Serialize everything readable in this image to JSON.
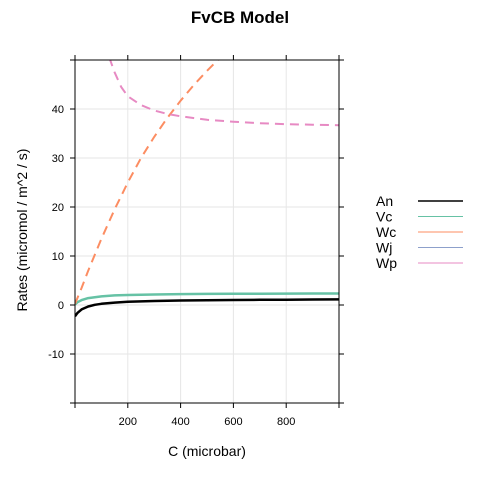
{
  "chart_data": {
    "type": "line",
    "title": "FvCB Model",
    "xlabel": "C (microbar)",
    "ylabel": "Rates (micromol / m^2 / s)",
    "xlim": [
      0,
      1000
    ],
    "ylim": [
      -20,
      50
    ],
    "xticks": [
      200,
      400,
      600,
      800
    ],
    "yticks": [
      -10,
      0,
      10,
      20,
      30,
      40
    ],
    "grid": true,
    "legend_position": "right",
    "series": [
      {
        "name": "An",
        "color": "#000000",
        "dash": "solid",
        "width": 2.5,
        "x": [
          0,
          10,
          25,
          50,
          75,
          100,
          150,
          200,
          300,
          400,
          500,
          600,
          700,
          800,
          900,
          1000
        ],
        "y": [
          -2.3,
          -1.6,
          -0.9,
          -0.3,
          0.05,
          0.25,
          0.5,
          0.65,
          0.82,
          0.92,
          0.98,
          1.02,
          1.06,
          1.09,
          1.12,
          1.15
        ]
      },
      {
        "name": "Vc",
        "color": "#66c2a5",
        "dash": "solid",
        "width": 2.5,
        "x": [
          0,
          10,
          25,
          50,
          75,
          100,
          150,
          200,
          300,
          400,
          500,
          600,
          700,
          800,
          900,
          1000
        ],
        "y": [
          0.1,
          0.6,
          1.0,
          1.4,
          1.6,
          1.75,
          1.95,
          2.05,
          2.15,
          2.22,
          2.26,
          2.29,
          2.31,
          2.33,
          2.34,
          2.35
        ]
      },
      {
        "name": "Wc",
        "color": "#fc8d62",
        "dash": "dashed",
        "width": 2,
        "x": [
          0,
          25,
          50,
          100,
          150,
          200,
          250,
          300,
          350,
          400,
          450,
          500,
          550
        ],
        "y": [
          0.2,
          3.5,
          7.0,
          13.5,
          19.5,
          25.0,
          30.0,
          34.3,
          38.2,
          41.7,
          44.9,
          47.8,
          50.5
        ]
      },
      {
        "name": "Wj",
        "color": "#8da0cb",
        "dash": "solid",
        "width": 1,
        "x": [],
        "y": []
      },
      {
        "name": "Wp",
        "color": "#e78ac3",
        "dash": "dashed",
        "width": 2,
        "x": [
          130,
          150,
          175,
          200,
          250,
          300,
          350,
          400,
          500,
          600,
          700,
          800,
          900,
          1000
        ],
        "y": [
          50.5,
          47.5,
          44.5,
          42.6,
          40.8,
          39.7,
          39.0,
          38.5,
          37.8,
          37.4,
          37.1,
          36.9,
          36.8,
          36.7
        ]
      }
    ]
  }
}
